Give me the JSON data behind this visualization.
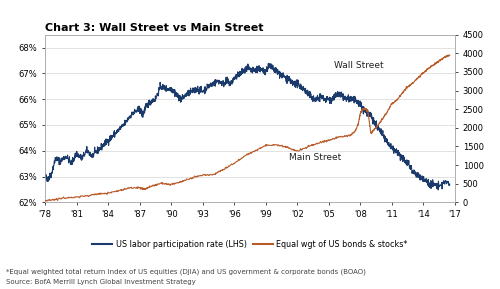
{
  "title": "Chart 3: Wall Street vs Main Street",
  "x_ticks": [
    "'78",
    "'81",
    "'84",
    "'87",
    "'90",
    "'93",
    "'96",
    "'99",
    "'02",
    "'05",
    "'08",
    "'11",
    "'14",
    "'17"
  ],
  "x_tick_years": [
    1978,
    1981,
    1984,
    1987,
    1990,
    1993,
    1996,
    1999,
    2002,
    2005,
    2008,
    2011,
    2014,
    2017
  ],
  "yleft_range": [
    62.0,
    68.5
  ],
  "yright_range": [
    0,
    4500
  ],
  "yright_ticks": [
    0,
    500,
    1000,
    1500,
    2000,
    2500,
    3000,
    3500,
    4000,
    4500
  ],
  "blue_color": "#1a3a6b",
  "orange_color": "#b85c2a",
  "legend_label_blue": "US labor participation rate (LHS)",
  "legend_label_orange": "Equal wgt of US bonds & stocks*",
  "label_wall_street": "Wall Street",
  "label_main_street": "Main Street",
  "footnote1": "*Equal weighted total return index of US equities (DJIA) and US government & corporate bonds (BOAO)",
  "footnote2": "Source: BofA Merrill Lynch Global Investment Strategy",
  "bg_color": "#ffffff",
  "plot_bg_color": "#ffffff",
  "blue_data": [
    [
      1978.0,
      63.0
    ],
    [
      1978.3,
      62.9
    ],
    [
      1978.6,
      63.1
    ],
    [
      1979.0,
      63.7
    ],
    [
      1979.5,
      63.6
    ],
    [
      1980.0,
      63.8
    ],
    [
      1980.5,
      63.5
    ],
    [
      1981.0,
      63.9
    ],
    [
      1981.5,
      63.7
    ],
    [
      1982.0,
      64.0
    ],
    [
      1982.5,
      63.8
    ],
    [
      1983.0,
      64.0
    ],
    [
      1983.5,
      64.2
    ],
    [
      1984.0,
      64.4
    ],
    [
      1984.5,
      64.6
    ],
    [
      1985.0,
      64.8
    ],
    [
      1985.5,
      65.0
    ],
    [
      1986.0,
      65.3
    ],
    [
      1986.5,
      65.5
    ],
    [
      1987.0,
      65.6
    ],
    [
      1987.3,
      65.4
    ],
    [
      1987.6,
      65.7
    ],
    [
      1988.0,
      65.9
    ],
    [
      1988.5,
      66.0
    ],
    [
      1989.0,
      66.5
    ],
    [
      1989.5,
      66.4
    ],
    [
      1990.0,
      66.4
    ],
    [
      1990.3,
      66.3
    ],
    [
      1990.6,
      66.1
    ],
    [
      1991.0,
      66.0
    ],
    [
      1991.5,
      66.2
    ],
    [
      1992.0,
      66.3
    ],
    [
      1992.5,
      66.4
    ],
    [
      1993.0,
      66.3
    ],
    [
      1993.5,
      66.5
    ],
    [
      1994.0,
      66.6
    ],
    [
      1994.5,
      66.7
    ],
    [
      1995.0,
      66.6
    ],
    [
      1995.3,
      66.7
    ],
    [
      1995.6,
      66.6
    ],
    [
      1996.0,
      66.8
    ],
    [
      1996.3,
      66.9
    ],
    [
      1996.6,
      67.0
    ],
    [
      1997.0,
      67.1
    ],
    [
      1997.3,
      67.2
    ],
    [
      1997.6,
      67.1
    ],
    [
      1998.0,
      67.1
    ],
    [
      1998.3,
      67.2
    ],
    [
      1998.6,
      67.1
    ],
    [
      1999.0,
      67.1
    ],
    [
      1999.3,
      67.3
    ],
    [
      1999.6,
      67.2
    ],
    [
      2000.0,
      67.1
    ],
    [
      2000.3,
      67.0
    ],
    [
      2000.6,
      66.9
    ],
    [
      2001.0,
      66.8
    ],
    [
      2001.3,
      66.7
    ],
    [
      2001.6,
      66.6
    ],
    [
      2002.0,
      66.6
    ],
    [
      2002.3,
      66.5
    ],
    [
      2002.6,
      66.4
    ],
    [
      2003.0,
      66.2
    ],
    [
      2003.3,
      66.1
    ],
    [
      2003.6,
      66.0
    ],
    [
      2004.0,
      66.0
    ],
    [
      2004.3,
      66.1
    ],
    [
      2004.6,
      66.0
    ],
    [
      2005.0,
      66.0
    ],
    [
      2005.3,
      66.0
    ],
    [
      2005.6,
      66.1
    ],
    [
      2006.0,
      66.2
    ],
    [
      2006.3,
      66.1
    ],
    [
      2006.6,
      66.0
    ],
    [
      2007.0,
      66.0
    ],
    [
      2007.3,
      66.0
    ],
    [
      2007.6,
      65.9
    ],
    [
      2008.0,
      65.8
    ],
    [
      2008.3,
      65.6
    ],
    [
      2008.6,
      65.5
    ],
    [
      2009.0,
      65.4
    ],
    [
      2009.3,
      65.1
    ],
    [
      2009.6,
      64.9
    ],
    [
      2010.0,
      64.7
    ],
    [
      2010.3,
      64.5
    ],
    [
      2010.6,
      64.3
    ],
    [
      2011.0,
      64.1
    ],
    [
      2011.3,
      64.0
    ],
    [
      2011.6,
      63.9
    ],
    [
      2012.0,
      63.7
    ],
    [
      2012.3,
      63.6
    ],
    [
      2012.6,
      63.5
    ],
    [
      2013.0,
      63.2
    ],
    [
      2013.3,
      63.1
    ],
    [
      2013.6,
      63.0
    ],
    [
      2014.0,
      62.9
    ],
    [
      2014.3,
      62.8
    ],
    [
      2014.6,
      62.7
    ],
    [
      2015.0,
      62.7
    ],
    [
      2015.5,
      62.6
    ],
    [
      2016.0,
      62.8
    ],
    [
      2016.5,
      62.7
    ]
  ],
  "orange_data": [
    [
      1978.0,
      50
    ],
    [
      1979.0,
      80
    ],
    [
      1980.0,
      120
    ],
    [
      1981.0,
      140
    ],
    [
      1982.0,
      175
    ],
    [
      1983.0,
      225
    ],
    [
      1984.0,
      245
    ],
    [
      1985.0,
      310
    ],
    [
      1986.0,
      385
    ],
    [
      1987.0,
      390
    ],
    [
      1987.5,
      350
    ],
    [
      1988.0,
      420
    ],
    [
      1989.0,
      510
    ],
    [
      1990.0,
      480
    ],
    [
      1991.0,
      560
    ],
    [
      1992.0,
      650
    ],
    [
      1993.0,
      730
    ],
    [
      1994.0,
      740
    ],
    [
      1995.0,
      890
    ],
    [
      1996.0,
      1050
    ],
    [
      1997.0,
      1250
    ],
    [
      1998.0,
      1380
    ],
    [
      1999.0,
      1530
    ],
    [
      2000.0,
      1540
    ],
    [
      2001.0,
      1480
    ],
    [
      2002.0,
      1370
    ],
    [
      2003.0,
      1490
    ],
    [
      2004.0,
      1590
    ],
    [
      2005.0,
      1670
    ],
    [
      2006.0,
      1750
    ],
    [
      2007.0,
      1800
    ],
    [
      2007.5,
      1900
    ],
    [
      2007.8,
      2100
    ],
    [
      2008.0,
      2400
    ],
    [
      2008.2,
      2500
    ],
    [
      2008.5,
      2500
    ],
    [
      2008.7,
      2450
    ],
    [
      2009.0,
      1850
    ],
    [
      2009.3,
      1950
    ],
    [
      2009.6,
      2050
    ],
    [
      2010.0,
      2200
    ],
    [
      2010.5,
      2400
    ],
    [
      2011.0,
      2650
    ],
    [
      2011.5,
      2750
    ],
    [
      2012.0,
      2950
    ],
    [
      2012.5,
      3100
    ],
    [
      2013.0,
      3200
    ],
    [
      2013.5,
      3350
    ],
    [
      2014.0,
      3480
    ],
    [
      2014.5,
      3600
    ],
    [
      2015.0,
      3700
    ],
    [
      2015.5,
      3800
    ],
    [
      2016.0,
      3900
    ],
    [
      2016.5,
      3950
    ]
  ]
}
